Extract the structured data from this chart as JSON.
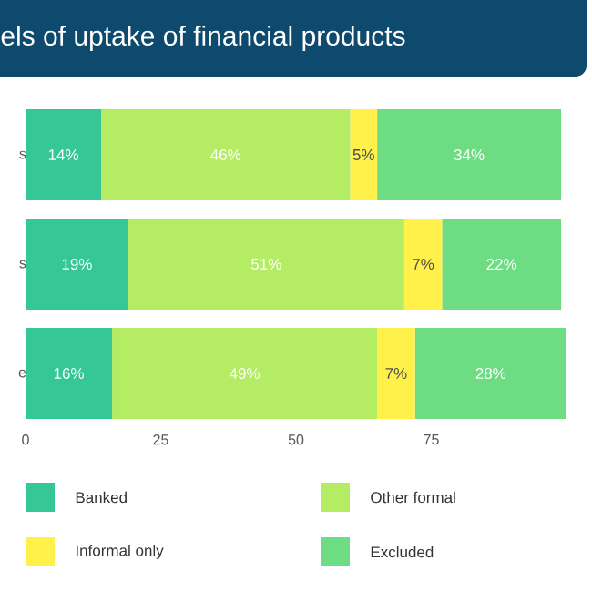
{
  "chart_data": {
    "type": "bar",
    "orientation": "horizontal",
    "stacked": true,
    "title": "els of uptake of financial products",
    "categories": [
      "s",
      "s",
      "e"
    ],
    "series": [
      {
        "name": "Banked",
        "color": "#35c795",
        "values": [
          14,
          19,
          16
        ],
        "value_labels": [
          "14%",
          "19%",
          "16%"
        ]
      },
      {
        "name": "Other formal",
        "color": "#b4ec64",
        "values": [
          46,
          51,
          49
        ],
        "value_labels": [
          "46%",
          "51%",
          "49%"
        ]
      },
      {
        "name": "Informal only",
        "color": "#fff04a",
        "values": [
          5,
          7,
          7
        ],
        "value_labels": [
          "5%",
          "7%",
          "7%"
        ]
      },
      {
        "name": "Excluded",
        "color": "#6ddc82",
        "values": [
          34,
          22,
          28
        ],
        "value_labels": [
          "34%",
          "22%",
          "28%"
        ]
      }
    ],
    "xlim": [
      0,
      100
    ],
    "xticks": [
      0,
      25,
      50,
      75
    ],
    "grid": false,
    "legend": "bottom"
  }
}
